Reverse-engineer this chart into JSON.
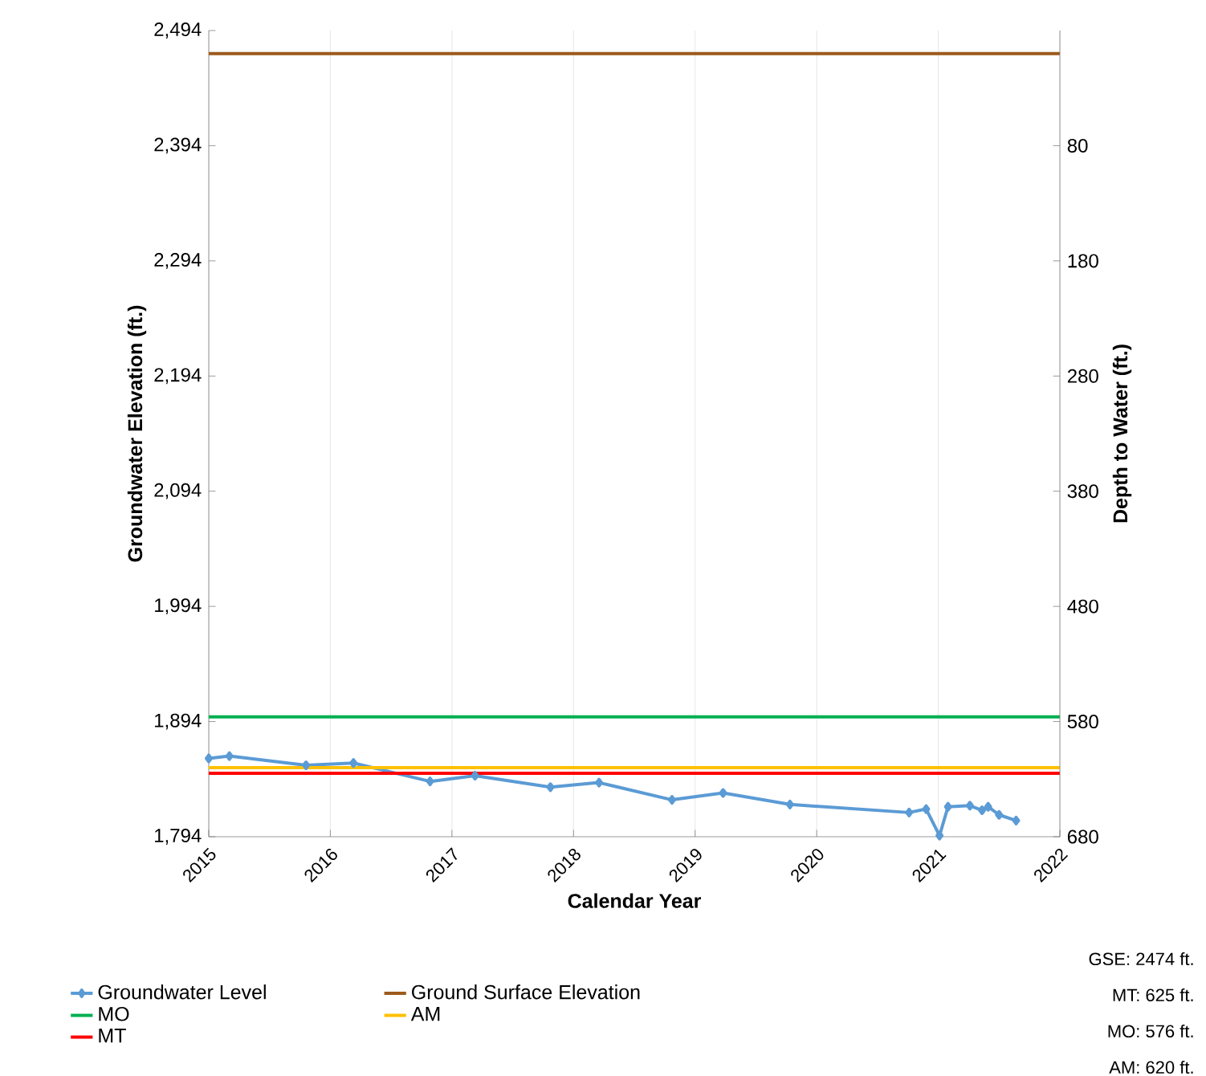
{
  "chart_data": {
    "type": "line",
    "xlabel": "Calendar Year",
    "ylabel": "Groundwater Elevation (ft.)",
    "y2label": "Depth to Water (ft.)",
    "xlim": [
      2015,
      2022
    ],
    "xticks": [
      2015,
      2016,
      2017,
      2018,
      2019,
      2020,
      2021,
      2022
    ],
    "ylim": [
      1794,
      2494
    ],
    "yticks": [
      {
        "value": 1794,
        "label": "1,794"
      },
      {
        "value": 1894,
        "label": "1,894"
      },
      {
        "value": 1994,
        "label": "1,994"
      },
      {
        "value": 2094,
        "label": "2,094"
      },
      {
        "value": 2194,
        "label": "2,194"
      },
      {
        "value": 2294,
        "label": "2,294"
      },
      {
        "value": 2394,
        "label": "2,394"
      },
      {
        "value": 2494,
        "label": "2,494"
      }
    ],
    "y2lim": [
      680,
      -20
    ],
    "y2ticks": [
      80,
      180,
      280,
      380,
      480,
      580,
      680
    ],
    "grid": "x",
    "legend": "bottom",
    "series": [
      {
        "name": "Groundwater Level",
        "color": "#5b9bd5",
        "marker": "diamond",
        "x": [
          2015.0,
          2015.17,
          2015.8,
          2016.19,
          2016.82,
          2017.19,
          2017.81,
          2018.21,
          2018.81,
          2019.23,
          2019.78,
          2020.76,
          2020.9,
          2021.01,
          2021.08,
          2021.26,
          2021.36,
          2021.41,
          2021.5,
          2021.64
        ],
        "values": [
          1862,
          1864,
          1856,
          1858,
          1842,
          1847,
          1837,
          1841,
          1826,
          1832,
          1822,
          1815,
          1818,
          1795,
          1820,
          1821,
          1817,
          1820,
          1813,
          1808
        ]
      },
      {
        "name": "Ground Surface Elevation",
        "color": "#9c5a1c",
        "x": [
          2015,
          2022
        ],
        "values": [
          2474,
          2474
        ]
      },
      {
        "name": "MO",
        "color": "#00b050",
        "x": [
          2015,
          2022
        ],
        "values": [
          1898,
          1898
        ]
      },
      {
        "name": "AM",
        "color": "#ffc000",
        "x": [
          2015,
          2022
        ],
        "values": [
          1854,
          1854
        ]
      },
      {
        "name": "MT",
        "color": "#ff0000",
        "x": [
          2015,
          2022
        ],
        "values": [
          1849,
          1849
        ]
      }
    ],
    "annotations": [
      "GSE: 2474 ft.",
      "MT: 625 ft.",
      "MO: 576 ft.",
      "AM: 620 ft."
    ]
  }
}
